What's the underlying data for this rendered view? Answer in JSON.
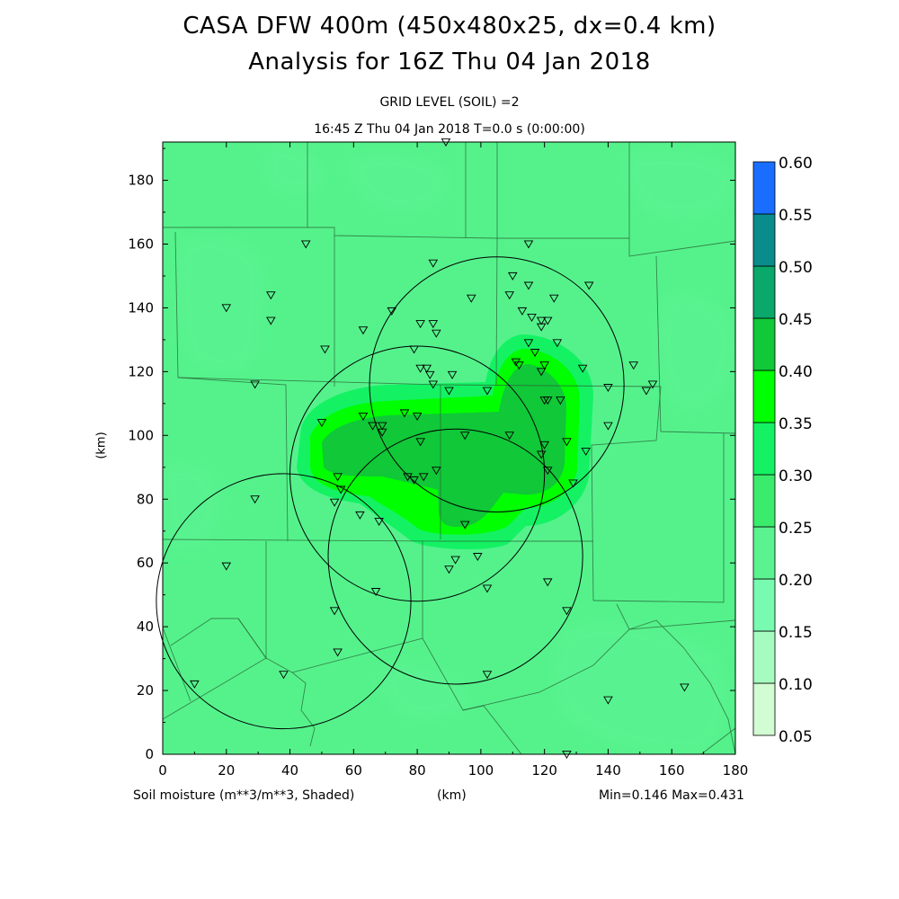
{
  "header": {
    "title_line1": "CASA DFW 400m (450x480x25, dx=0.4 km)",
    "title_line2": "Analysis for 16Z Thu 04 Jan 2018",
    "grid_level": "GRID LEVEL (SOIL) =2",
    "time_line": "16:45 Z Thu 04 Jan 2018    T=0.0 s (0:00:00)"
  },
  "footer": {
    "field_label": "Soil moisture (m**3/m**3, Shaded)",
    "x_unit": "(km)",
    "minmax": "Min=0.146  Max=0.431"
  },
  "colors": {
    "field_base": "#55f28c",
    "bands": [
      "#d2fcd2",
      "#a6fcc0",
      "#78fbb0",
      "#5af390",
      "#3bec6c",
      "#14f264",
      "#00ff00",
      "#10c838",
      "#0aa86a",
      "#0a8c8c",
      "#1a6eff"
    ]
  },
  "chart_data": {
    "type": "heatmap",
    "title": "CASA DFW 400m (450x480x25, dx=0.4 km)",
    "subtitle": "Analysis for 16Z Thu 04 Jan 2018",
    "xlabel": "(km)",
    "ylabel": "(km)",
    "xlim": [
      0,
      180
    ],
    "ylim": [
      0,
      192
    ],
    "x_ticks": [
      0,
      20,
      40,
      60,
      80,
      100,
      120,
      140,
      160,
      180
    ],
    "y_ticks": [
      0,
      20,
      40,
      60,
      80,
      100,
      120,
      140,
      160,
      180
    ],
    "colorbar": {
      "levels": [
        "0.05",
        "0.10",
        "0.15",
        "0.20",
        "0.25",
        "0.30",
        "0.35",
        "0.40",
        "0.45",
        "0.50",
        "0.55",
        "0.60"
      ]
    },
    "field_min": 0.146,
    "field_max": 0.431,
    "radar_rings": [
      {
        "center": [
          80,
          88
        ],
        "radius": 40
      },
      {
        "center": [
          105,
          116
        ],
        "radius": 40
      },
      {
        "center": [
          38,
          48
        ],
        "radius": 40
      },
      {
        "center": [
          92,
          62
        ],
        "radius": 40
      }
    ],
    "stations": [
      [
        89,
        192
      ],
      [
        45,
        160
      ],
      [
        115,
        160
      ],
      [
        85,
        154
      ],
      [
        134,
        147
      ],
      [
        110,
        150
      ],
      [
        115,
        147
      ],
      [
        34,
        144
      ],
      [
        123,
        143
      ],
      [
        97,
        143
      ],
      [
        109,
        144
      ],
      [
        20,
        140
      ],
      [
        72,
        139
      ],
      [
        113,
        139
      ],
      [
        34,
        136
      ],
      [
        116,
        137
      ],
      [
        119,
        136
      ],
      [
        121,
        136
      ],
      [
        119,
        134
      ],
      [
        81,
        135
      ],
      [
        85,
        135
      ],
      [
        63,
        133
      ],
      [
        86,
        132
      ],
      [
        115,
        129
      ],
      [
        124,
        129
      ],
      [
        51,
        127
      ],
      [
        79,
        127
      ],
      [
        117,
        126
      ],
      [
        111,
        123
      ],
      [
        112,
        122
      ],
      [
        120,
        122
      ],
      [
        81,
        121
      ],
      [
        83,
        121
      ],
      [
        84,
        119
      ],
      [
        91,
        119
      ],
      [
        119,
        120
      ],
      [
        132,
        121
      ],
      [
        148,
        122
      ],
      [
        29,
        116
      ],
      [
        85,
        116
      ],
      [
        90,
        114
      ],
      [
        102,
        114
      ],
      [
        140,
        115
      ],
      [
        152,
        114
      ],
      [
        154,
        116
      ],
      [
        120,
        111
      ],
      [
        121,
        111
      ],
      [
        125,
        111
      ],
      [
        76,
        107
      ],
      [
        80,
        106
      ],
      [
        63,
        106
      ],
      [
        50,
        104
      ],
      [
        66,
        103
      ],
      [
        69,
        103
      ],
      [
        140,
        103
      ],
      [
        69,
        101
      ],
      [
        95,
        100
      ],
      [
        109,
        100
      ],
      [
        81,
        98
      ],
      [
        127,
        98
      ],
      [
        120,
        97
      ],
      [
        119,
        94
      ],
      [
        133,
        95
      ],
      [
        121,
        89
      ],
      [
        129,
        85
      ],
      [
        55,
        87
      ],
      [
        77,
        87
      ],
      [
        86,
        89
      ],
      [
        82,
        87
      ],
      [
        79,
        86
      ],
      [
        56,
        83
      ],
      [
        54,
        79
      ],
      [
        29,
        80
      ],
      [
        62,
        75
      ],
      [
        68,
        73
      ],
      [
        95,
        72
      ],
      [
        20,
        59
      ],
      [
        92,
        61
      ],
      [
        99,
        62
      ],
      [
        90,
        58
      ],
      [
        102,
        52
      ],
      [
        121,
        54
      ],
      [
        67,
        51
      ],
      [
        54,
        45
      ],
      [
        127,
        45
      ],
      [
        55,
        32
      ],
      [
        38,
        25
      ],
      [
        102,
        25
      ],
      [
        10,
        22
      ],
      [
        140,
        17
      ],
      [
        164,
        21
      ],
      [
        127,
        0
      ]
    ]
  }
}
